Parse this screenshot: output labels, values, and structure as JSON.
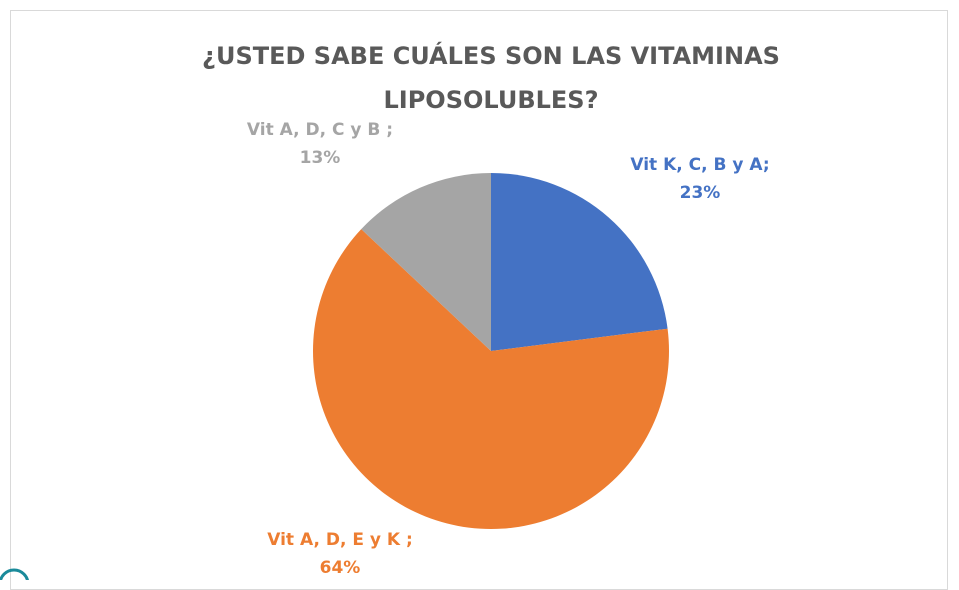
{
  "chart_data": {
    "type": "pie",
    "title": "¿USTED SABE CUÁLES SON LAS VITAMINAS LIPOSOLUBLES?",
    "categories": [
      "Vit K, C, B y A;",
      "Vit A, D, E y K ;",
      "Vit A, D, C y B ;"
    ],
    "values": [
      23,
      64,
      13
    ],
    "value_labels": [
      "23%",
      "64%",
      "13%"
    ],
    "colors": [
      "#4472c4",
      "#ed7d31",
      "#a5a5a5"
    ]
  }
}
